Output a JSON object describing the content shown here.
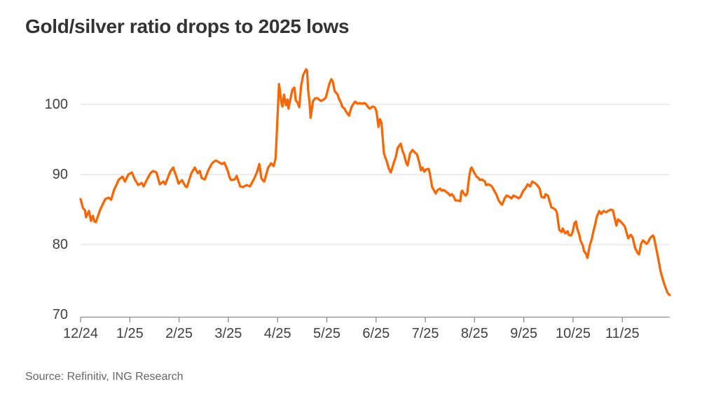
{
  "page": {
    "title": "Gold/silver ratio drops to 2025 lows",
    "source": "Source: Refinitiv, ING Research"
  },
  "colors": {
    "background": "#ffffff",
    "accent_line": "#f96702",
    "title_text": "#333333",
    "axis_text": "#414141",
    "source_text": "#666666",
    "gridline": "#d9d9d9",
    "axis_line": "#8c8c8c"
  },
  "chart_data": {
    "type": "line",
    "title": "Gold/silver ratio drops to 2025 lows",
    "legend": "none",
    "grid": "horizontal gridlines only",
    "x_axis": {
      "unit": "month (MM/YY)",
      "tick_labels": [
        "12/24",
        "1/25",
        "2/25",
        "3/25",
        "4/25",
        "5/25",
        "6/25",
        "7/25",
        "8/25",
        "9/25",
        "10/25",
        "11/25"
      ],
      "note": "series x values are fractional months; 0 = 12/24 tick, 11 = 11/25 tick, line ends ~11.96"
    },
    "y_axis": {
      "ticks": [
        70,
        80,
        90,
        100
      ],
      "tick_labels": [
        "70",
        "80",
        "90",
        "100"
      ],
      "gridlines_at": [
        100,
        90,
        80
      ],
      "ylim": [
        70,
        106.5
      ]
    },
    "series": [
      {
        "name": "Gold/silver ratio",
        "color": "#f96702",
        "points": [
          [
            0,
            86.5
          ],
          [
            0.05,
            85.2
          ],
          [
            0.09,
            84.9
          ],
          [
            0.11,
            83.9
          ],
          [
            0.17,
            84.8
          ],
          [
            0.21,
            83.4
          ],
          [
            0.25,
            84.1
          ],
          [
            0.28,
            83.3
          ],
          [
            0.31,
            83.2
          ],
          [
            0.4,
            85
          ],
          [
            0.5,
            86.5
          ],
          [
            0.57,
            86.7
          ],
          [
            0.62,
            86.4
          ],
          [
            0.68,
            87.8
          ],
          [
            0.78,
            89.3
          ],
          [
            0.85,
            89.7
          ],
          [
            0.9,
            89
          ],
          [
            0.97,
            90
          ],
          [
            1.04,
            90.3
          ],
          [
            1.11,
            89.2
          ],
          [
            1.17,
            88.5
          ],
          [
            1.24,
            88.8
          ],
          [
            1.28,
            88.3
          ],
          [
            1.35,
            89.3
          ],
          [
            1.42,
            90.2
          ],
          [
            1.47,
            90.5
          ],
          [
            1.54,
            90.3
          ],
          [
            1.61,
            88.6
          ],
          [
            1.68,
            89
          ],
          [
            1.72,
            88.6
          ],
          [
            1.82,
            90.4
          ],
          [
            1.88,
            91
          ],
          [
            1.95,
            89.6
          ],
          [
            1.99,
            88.7
          ],
          [
            2.06,
            89.2
          ],
          [
            2.13,
            88.3
          ],
          [
            2.16,
            88.2
          ],
          [
            2.25,
            90.2
          ],
          [
            2.32,
            91
          ],
          [
            2.38,
            90.2
          ],
          [
            2.42,
            90.5
          ],
          [
            2.46,
            89.5
          ],
          [
            2.52,
            89.3
          ],
          [
            2.6,
            90.7
          ],
          [
            2.66,
            91.5
          ],
          [
            2.7,
            91.8
          ],
          [
            2.75,
            92
          ],
          [
            2.8,
            91.8
          ],
          [
            2.87,
            91.5
          ],
          [
            2.92,
            91.7
          ],
          [
            2.99,
            90.5
          ],
          [
            3.03,
            89.5
          ],
          [
            3.06,
            89.2
          ],
          [
            3.13,
            89.3
          ],
          [
            3.17,
            89.8
          ],
          [
            3.24,
            88.3
          ],
          [
            3.3,
            88.2
          ],
          [
            3.37,
            88.5
          ],
          [
            3.44,
            88.3
          ],
          [
            3.53,
            89.5
          ],
          [
            3.58,
            90.3
          ],
          [
            3.63,
            91.5
          ],
          [
            3.67,
            89.5
          ],
          [
            3.7,
            89.2
          ],
          [
            3.73,
            89
          ],
          [
            3.77,
            90
          ],
          [
            3.81,
            91
          ],
          [
            3.87,
            91.6
          ],
          [
            3.92,
            91.2
          ],
          [
            3.96,
            92.3
          ],
          [
            4.03,
            102.9
          ],
          [
            4.08,
            100.2
          ],
          [
            4.1,
            99.7
          ],
          [
            4.13,
            101.4
          ],
          [
            4.17,
            99.9
          ],
          [
            4.2,
            100.7
          ],
          [
            4.22,
            99.4
          ],
          [
            4.24,
            100.1
          ],
          [
            4.3,
            102.1
          ],
          [
            4.34,
            102.4
          ],
          [
            4.37,
            100.6
          ],
          [
            4.41,
            100.2
          ],
          [
            4.44,
            99.6
          ],
          [
            4.48,
            102.7
          ],
          [
            4.52,
            104.2
          ],
          [
            4.58,
            105
          ],
          [
            4.6,
            104.8
          ],
          [
            4.62,
            102.1
          ],
          [
            4.65,
            100.2
          ],
          [
            4.67,
            98.1
          ],
          [
            4.72,
            100.5
          ],
          [
            4.77,
            100.9
          ],
          [
            4.81,
            100.9
          ],
          [
            4.84,
            100.7
          ],
          [
            4.88,
            100.5
          ],
          [
            4.94,
            100.7
          ],
          [
            4.98,
            101
          ],
          [
            5.05,
            102.9
          ],
          [
            5.09,
            103.6
          ],
          [
            5.12,
            103.3
          ],
          [
            5.16,
            101.9
          ],
          [
            5.22,
            101.4
          ],
          [
            5.24,
            100.9
          ],
          [
            5.29,
            100.2
          ],
          [
            5.31,
            99.7
          ],
          [
            5.36,
            99.4
          ],
          [
            5.38,
            99.1
          ],
          [
            5.43,
            98.6
          ],
          [
            5.45,
            98.4
          ],
          [
            5.5,
            99.6
          ],
          [
            5.55,
            100.2
          ],
          [
            5.58,
            100.4
          ],
          [
            5.62,
            100.1
          ],
          [
            5.66,
            100.2
          ],
          [
            5.72,
            100.1
          ],
          [
            5.76,
            100.2
          ],
          [
            5.79,
            100.1
          ],
          [
            5.83,
            99.7
          ],
          [
            5.87,
            99.4
          ],
          [
            5.93,
            99.7
          ],
          [
            5.97,
            99.6
          ],
          [
            6,
            99.2
          ],
          [
            6.02,
            98.4
          ],
          [
            6.05,
            96.8
          ],
          [
            6.08,
            97.9
          ],
          [
            6.11,
            97.4
          ],
          [
            6.16,
            93
          ],
          [
            6.22,
            91.8
          ],
          [
            6.26,
            90.8
          ],
          [
            6.3,
            90.3
          ],
          [
            6.36,
            91.7
          ],
          [
            6.4,
            92.5
          ],
          [
            6.44,
            93.8
          ],
          [
            6.5,
            94.4
          ],
          [
            6.54,
            93.3
          ],
          [
            6.57,
            92.8
          ],
          [
            6.61,
            91.7
          ],
          [
            6.64,
            91.3
          ],
          [
            6.69,
            93
          ],
          [
            6.74,
            93.5
          ],
          [
            6.78,
            93.2
          ],
          [
            6.83,
            92.9
          ],
          [
            6.87,
            91.9
          ],
          [
            6.91,
            90.6
          ],
          [
            6.94,
            91
          ],
          [
            6.98,
            90.4
          ],
          [
            7.01,
            90.7
          ],
          [
            7.07,
            90.8
          ],
          [
            7.09,
            90.2
          ],
          [
            7.14,
            88.2
          ],
          [
            7.18,
            87.7
          ],
          [
            7.21,
            87.3
          ],
          [
            7.25,
            87.8
          ],
          [
            7.3,
            88
          ],
          [
            7.33,
            87.7
          ],
          [
            7.37,
            87.8
          ],
          [
            7.43,
            87.5
          ],
          [
            7.47,
            87.3
          ],
          [
            7.5,
            87
          ],
          [
            7.54,
            87.2
          ],
          [
            7.58,
            86.8
          ],
          [
            7.61,
            86.3
          ],
          [
            7.65,
            86.3
          ],
          [
            7.71,
            86.2
          ],
          [
            7.73,
            87.5
          ],
          [
            7.75,
            87.7
          ],
          [
            7.78,
            87.3
          ],
          [
            7.82,
            87
          ],
          [
            7.85,
            87.3
          ],
          [
            7.89,
            89.7
          ],
          [
            7.92,
            90.8
          ],
          [
            7.94,
            91
          ],
          [
            7.97,
            90.6
          ],
          [
            7.99,
            90.3
          ],
          [
            8.04,
            89.7
          ],
          [
            8.08,
            89.5
          ],
          [
            8.11,
            89.2
          ],
          [
            8.15,
            89.3
          ],
          [
            8.21,
            89
          ],
          [
            8.23,
            88.5
          ],
          [
            8.28,
            88.6
          ],
          [
            8.32,
            88.5
          ],
          [
            8.36,
            88.2
          ],
          [
            8.39,
            87.8
          ],
          [
            8.44,
            87.2
          ],
          [
            8.49,
            86.3
          ],
          [
            8.54,
            85.8
          ],
          [
            8.56,
            85.7
          ],
          [
            8.61,
            86.6
          ],
          [
            8.65,
            87
          ],
          [
            8.71,
            86.8
          ],
          [
            8.75,
            86.6
          ],
          [
            8.79,
            87
          ],
          [
            8.85,
            86.8
          ],
          [
            8.89,
            86.6
          ],
          [
            8.93,
            86.8
          ],
          [
            8.99,
            87.7
          ],
          [
            9.03,
            88
          ],
          [
            9.08,
            88.6
          ],
          [
            9.13,
            88.3
          ],
          [
            9.17,
            89
          ],
          [
            9.22,
            88.8
          ],
          [
            9.27,
            88.5
          ],
          [
            9.32,
            88
          ],
          [
            9.36,
            86.8
          ],
          [
            9.42,
            86.7
          ],
          [
            9.44,
            87.2
          ],
          [
            9.49,
            87
          ],
          [
            9.51,
            86.5
          ],
          [
            9.56,
            85.3
          ],
          [
            9.6,
            85.2
          ],
          [
            9.64,
            85
          ],
          [
            9.67,
            84.6
          ],
          [
            9.72,
            82.1
          ],
          [
            9.77,
            81.8
          ],
          [
            9.79,
            82.3
          ],
          [
            9.84,
            81.6
          ],
          [
            9.89,
            81.9
          ],
          [
            9.91,
            81.4
          ],
          [
            9.96,
            81.3
          ],
          [
            9.99,
            81.8
          ],
          [
            10.03,
            83.1
          ],
          [
            10.06,
            83.3
          ],
          [
            10.08,
            82.4
          ],
          [
            10.13,
            81.3
          ],
          [
            10.15,
            80.6
          ],
          [
            10.2,
            79.8
          ],
          [
            10.22,
            79.1
          ],
          [
            10.27,
            78.6
          ],
          [
            10.29,
            78.1
          ],
          [
            10.31,
            78.8
          ],
          [
            10.34,
            79.9
          ],
          [
            10.38,
            80.8
          ],
          [
            10.41,
            81.8
          ],
          [
            10.45,
            82.9
          ],
          [
            10.48,
            83.9
          ],
          [
            10.53,
            84.8
          ],
          [
            10.57,
            84.4
          ],
          [
            10.62,
            84.8
          ],
          [
            10.67,
            84.6
          ],
          [
            10.71,
            84.8
          ],
          [
            10.77,
            85
          ],
          [
            10.81,
            84.9
          ],
          [
            10.84,
            83.9
          ],
          [
            10.88,
            82.7
          ],
          [
            10.91,
            83.6
          ],
          [
            10.95,
            83.4
          ],
          [
            10.99,
            83.1
          ],
          [
            11.05,
            82.6
          ],
          [
            11.07,
            82.1
          ],
          [
            11.12,
            80.9
          ],
          [
            11.17,
            81.4
          ],
          [
            11.21,
            81
          ],
          [
            11.26,
            79.5
          ],
          [
            11.31,
            78.8
          ],
          [
            11.34,
            78.6
          ],
          [
            11.38,
            80.1
          ],
          [
            11.42,
            80.6
          ],
          [
            11.45,
            80.4
          ],
          [
            11.49,
            80.1
          ],
          [
            11.52,
            80.3
          ],
          [
            11.56,
            80.9
          ],
          [
            11.62,
            81.3
          ],
          [
            11.64,
            81.1
          ],
          [
            11.69,
            79.4
          ],
          [
            11.74,
            77.6
          ],
          [
            11.78,
            76.1
          ],
          [
            11.84,
            74.6
          ],
          [
            11.88,
            73.8
          ],
          [
            11.92,
            73.1
          ],
          [
            11.96,
            72.8
          ]
        ]
      }
    ]
  }
}
